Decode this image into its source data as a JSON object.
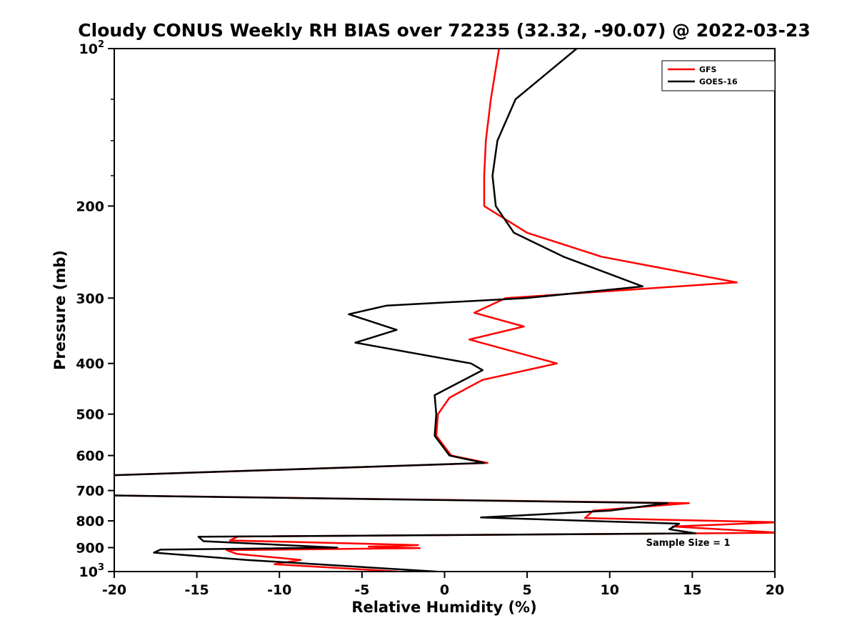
{
  "chart_data": {
    "type": "line",
    "title": "Cloudy CONUS Weekly RH BIAS over 72235 (32.32, -90.07) @ 2022-03-23",
    "xlabel": "Relative Humidity (%)",
    "ylabel": "Pressure (mb)",
    "xlim": [
      -20,
      20
    ],
    "ylim": [
      100,
      1000
    ],
    "yscale": "log",
    "y_axis_inverted": true,
    "grid": false,
    "axis_color": "#000000",
    "background_color": "#ffffff",
    "xticks": [
      {
        "value": -20,
        "label": "-20"
      },
      {
        "value": -15,
        "label": "-15"
      },
      {
        "value": -10,
        "label": "-10"
      },
      {
        "value": -5,
        "label": "-5"
      },
      {
        "value": 0,
        "label": "0"
      },
      {
        "value": 5,
        "label": "5"
      },
      {
        "value": 10,
        "label": "10"
      },
      {
        "value": 15,
        "label": "15"
      },
      {
        "value": 20,
        "label": "20"
      }
    ],
    "yticks": [
      {
        "value": 100,
        "label": "10^2"
      },
      {
        "value": 200,
        "label": "200"
      },
      {
        "value": 300,
        "label": "300"
      },
      {
        "value": 400,
        "label": "400"
      },
      {
        "value": 500,
        "label": "500"
      },
      {
        "value": 600,
        "label": "600"
      },
      {
        "value": 700,
        "label": "700"
      },
      {
        "value": 800,
        "label": "800"
      },
      {
        "value": 900,
        "label": "900"
      },
      {
        "value": 1000,
        "label": "10^3"
      }
    ],
    "y_minor_ticks": [
      125,
      150,
      175
    ],
    "legend": {
      "position": "top-right",
      "entries": [
        {
          "name": "GFS",
          "color": "#ff0000"
        },
        {
          "name": "GOES-16",
          "color": "#000000"
        }
      ]
    },
    "annotation": {
      "text": "Sample Size = 1",
      "x": 12.2,
      "y": 893
    },
    "series": [
      {
        "name": "GFS",
        "color": "#ff0000",
        "linewidth": 2.5,
        "points": [
          [
            100,
            3.3
          ],
          [
            125,
            2.8
          ],
          [
            150,
            2.5
          ],
          [
            175,
            2.4
          ],
          [
            200,
            2.4
          ],
          [
            225,
            5.0
          ],
          [
            250,
            9.5
          ],
          [
            280,
            17.7
          ],
          [
            300,
            3.7
          ],
          [
            320,
            1.8
          ],
          [
            340,
            4.8
          ],
          [
            360,
            1.5
          ],
          [
            400,
            6.8
          ],
          [
            430,
            2.3
          ],
          [
            465,
            0.3
          ],
          [
            500,
            -0.4
          ],
          [
            550,
            -0.5
          ],
          [
            600,
            0.4
          ],
          [
            620,
            2.6
          ],
          [
            655,
            -20.5
          ],
          [
            715,
            -20.5
          ],
          [
            740,
            14.8
          ],
          [
            765,
            9.0
          ],
          [
            790,
            8.5
          ],
          [
            805,
            20.3
          ],
          [
            820,
            13.8
          ],
          [
            843,
            20.3
          ],
          [
            857,
            -12.5
          ],
          [
            872,
            -13.0
          ],
          [
            885,
            -4.5
          ],
          [
            890,
            -1.6
          ],
          [
            896,
            -4.6
          ],
          [
            902,
            -1.5
          ],
          [
            910,
            -13.2
          ],
          [
            925,
            -12.6
          ],
          [
            950,
            -8.7
          ],
          [
            968,
            -10.3
          ],
          [
            1000,
            -2.8
          ]
        ]
      },
      {
        "name": "GOES-16",
        "color": "#000000",
        "linewidth": 2.5,
        "points": [
          [
            100,
            8.0
          ],
          [
            125,
            4.3
          ],
          [
            150,
            3.2
          ],
          [
            175,
            2.9
          ],
          [
            200,
            3.1
          ],
          [
            225,
            4.2
          ],
          [
            250,
            7.2
          ],
          [
            285,
            12.0
          ],
          [
            300,
            4.9
          ],
          [
            310,
            -3.5
          ],
          [
            322,
            -5.8
          ],
          [
            345,
            -2.9
          ],
          [
            365,
            -5.4
          ],
          [
            400,
            1.6
          ],
          [
            412,
            2.3
          ],
          [
            460,
            -0.6
          ],
          [
            500,
            -0.5
          ],
          [
            550,
            -0.6
          ],
          [
            600,
            0.3
          ],
          [
            620,
            2.4
          ],
          [
            655,
            -20.5
          ],
          [
            715,
            -20.5
          ],
          [
            740,
            13.5
          ],
          [
            765,
            10.0
          ],
          [
            788,
            2.2
          ],
          [
            810,
            14.2
          ],
          [
            830,
            13.6
          ],
          [
            845,
            15.2
          ],
          [
            858,
            -14.9
          ],
          [
            875,
            -14.6
          ],
          [
            900,
            -6.5
          ],
          [
            908,
            -17.2
          ],
          [
            920,
            -17.6
          ],
          [
            950,
            -12.0
          ],
          [
            1000,
            -0.5
          ]
        ]
      }
    ]
  }
}
